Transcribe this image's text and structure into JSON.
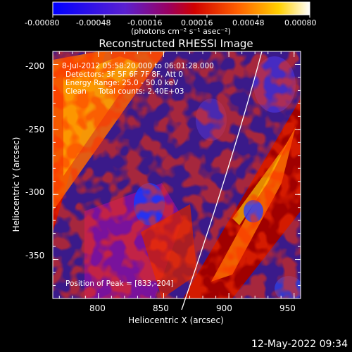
{
  "chart_data": {
    "type": "heatmap",
    "title": "Reconstructed RHESSI Image",
    "xlabel": "Heliocentric X (arcsec)",
    "ylabel": "Heliocentric Y (arcsec)",
    "xlim": [
      765,
      955
    ],
    "ylim": [
      -380,
      -190
    ],
    "x_ticks": [
      "800",
      "850",
      "900",
      "950"
    ],
    "y_ticks": [
      "-200",
      "-250",
      "-300",
      "-350"
    ],
    "colorbar": {
      "ticks": [
        "-0.00080",
        "-0.00048",
        "-0.00016",
        "0.00016",
        "0.00048",
        "0.00080"
      ],
      "unit": "(photons cm⁻² s⁻¹ asec⁻²)",
      "range": [
        -0.0008,
        0.0008
      ],
      "colors": [
        "#0000ff",
        "#7a00a8",
        "#c0001a",
        "#ff5500",
        "#ffc000",
        "#ffffff"
      ]
    },
    "annotations": [
      "8-Jul-2012 05:58:20.000 to 06:01:28.000",
      "Detectors: 3F 5F 6F 7F 8F, Att 0",
      "Energy Range: 25.0 - 50.0 keV",
      "Clean     Total counts: 2.40E+03",
      "Position of Peak = [833,-204]"
    ],
    "peak": {
      "x": 833,
      "y": -204
    }
  },
  "timestamp": "12-May-2022 09:34"
}
